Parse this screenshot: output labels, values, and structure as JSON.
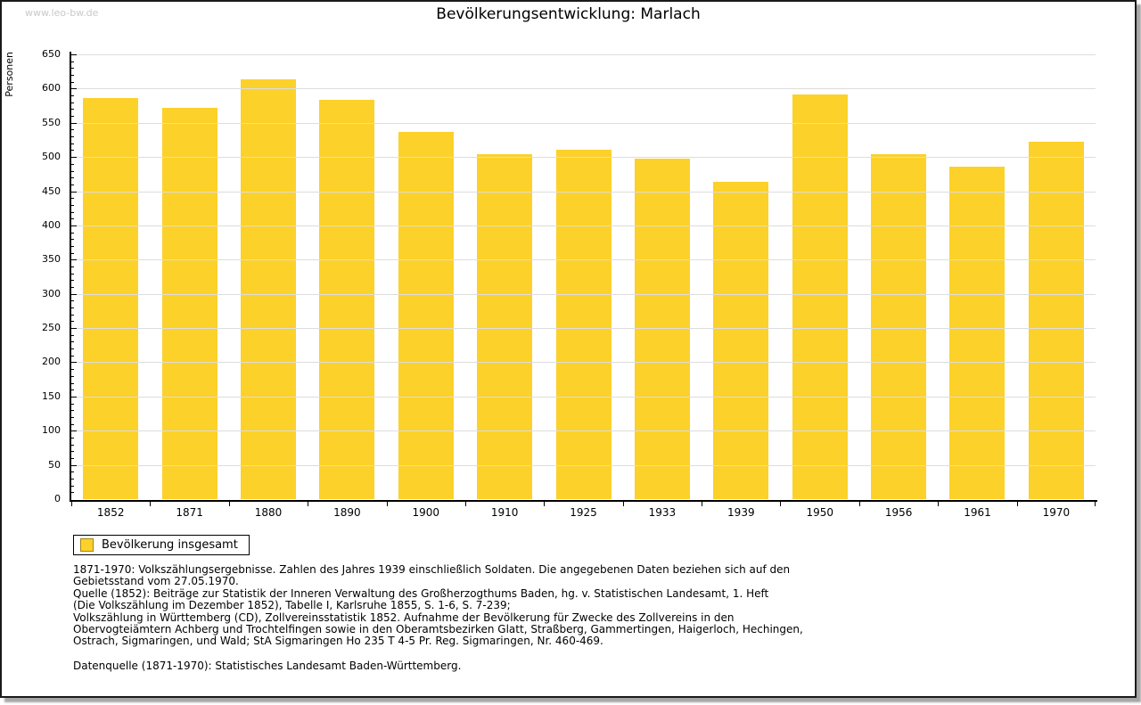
{
  "watermark": "www.leo-bw.de",
  "title": "Bevölkerungsentwicklung: Marlach",
  "chart_data": {
    "type": "bar",
    "title": "Bevölkerungsentwicklung: Marlach",
    "xlabel": "",
    "ylabel": "Personen",
    "categories": [
      "1852",
      "1871",
      "1880",
      "1890",
      "1900",
      "1910",
      "1925",
      "1933",
      "1939",
      "1950",
      "1956",
      "1961",
      "1970"
    ],
    "series": [
      {
        "name": "Bevölkerung insgesamt",
        "values": [
          586,
          572,
          613,
          583,
          537,
          504,
          511,
          497,
          464,
          592,
          504,
          486,
          522
        ]
      }
    ],
    "ylim": [
      0,
      650
    ],
    "y_major_step": 50,
    "y_minor_step": 10,
    "grid": true,
    "legend_position": "bottom-left",
    "bar_color": "#FCD12A"
  },
  "legend": {
    "label": "Bevölkerung insgesamt",
    "swatch_color": "#FCD12A",
    "swatch_border_color": "#A3841B"
  },
  "footnote_lines": [
    "1871-1970: Volkszählungsergebnisse. Zahlen des Jahres 1939 einschließlich Soldaten. Die angegebenen Daten beziehen sich auf den",
    "Gebietsstand vom 27.05.1970.",
    "Quelle (1852): Beiträge zur Statistik der Inneren Verwaltung des Großherzogthums Baden, hg. v. Statistischen Landesamt, 1. Heft",
    "(Die Volkszählung im Dezember 1852), Tabelle I, Karlsruhe 1855, S. 1-6, S. 7-239;",
    "Volkszählung in Württemberg (CD), Zollvereinsstatistik 1852. Aufnahme der Bevölkerung für Zwecke des Zollvereins in den",
    "Obervogteiämtern Achberg und Trochtelfingen sowie in den Oberamtsbezirken Glatt, Straßberg, Gammertingen, Haigerloch, Hechingen,",
    "Ostrach, Sigmaringen, und Wald; StA Sigmaringen Ho 235 T 4-5 Pr. Reg. Sigmaringen, Nr. 460-469."
  ],
  "datasource": "Datenquelle (1871-1970): Statistisches Landesamt Baden-Württemberg.",
  "colors": {
    "bar": "#FCD12A",
    "gridline": "#DDDDDD",
    "axis": "#000000",
    "watermark": "#C9C9C9",
    "frame_border": "#1A1A1A",
    "frame_shadow": "#A6A6A6"
  }
}
